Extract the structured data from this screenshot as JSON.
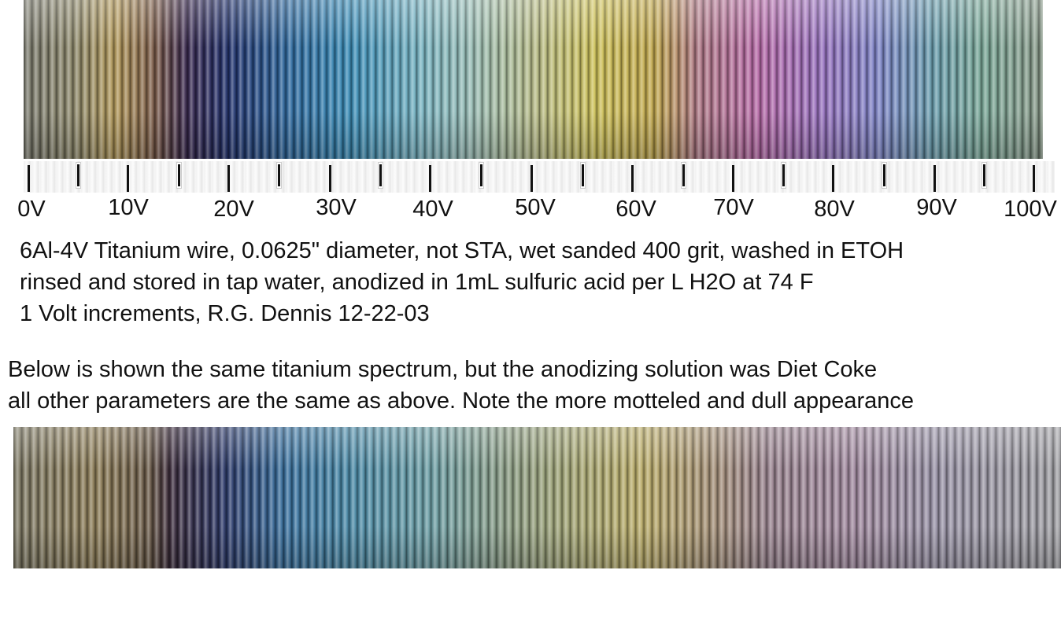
{
  "scale": {
    "labels": [
      "0V",
      "10V",
      "20V",
      "30V",
      "40V",
      "50V",
      "60V",
      "70V",
      "80V",
      "90V",
      "100V"
    ]
  },
  "description": {
    "lines": [
      "6Al-4V Titanium wire, 0.0625\" diameter, not STA, wet sanded 400 grit, washed in ETOH",
      "rinsed and stored in tap water, anodized in 1mL sulfuric acid per L H2O at 74 F",
      "1 Volt increments, R.G. Dennis 12-22-03"
    ]
  },
  "note": {
    "lines": [
      "Below is shown the same titanium spectrum, but the anodizing solution was Diet Coke",
      "all other parameters are the same as above.  Note the more motteled and dull appearance"
    ]
  }
}
